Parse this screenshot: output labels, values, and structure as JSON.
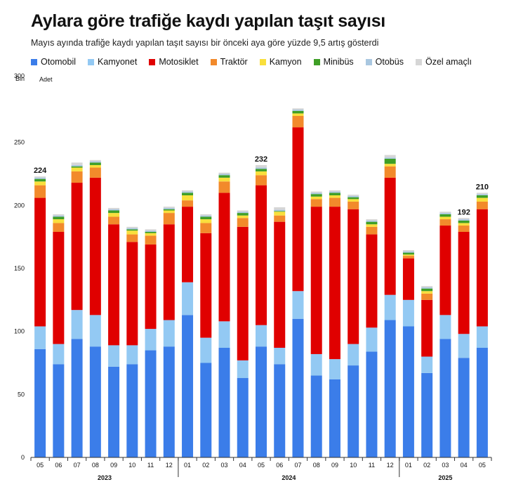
{
  "title": "Aylara göre trafiğe kaydı yapılan taşıt sayısı",
  "subtitle": "Mayıs ayında trafiğe kaydı yapılan taşıt sayısı bir önceki aya göre yüzde 9,5 artış gösterdi",
  "colors": {
    "Otomobil": "#3b7de9",
    "Kamyonet": "#93c9f3",
    "Motosiklet": "#e00000",
    "Traktör": "#f28a2b",
    "Kamyon": "#f9df3c",
    "Minibüs": "#3f9f26",
    "Otobüs": "#a9c7e0",
    "Özel amaçlı": "#d6d6d6"
  },
  "chart_data": {
    "type": "bar",
    "stacked": true,
    "ylabel": "Adet",
    "yunit": "Bin",
    "ylim": [
      0,
      300
    ],
    "yticks": [
      0,
      50,
      100,
      150,
      200,
      250,
      300
    ],
    "grid": false,
    "legend_position": "top",
    "categories": [
      "05",
      "06",
      "07",
      "08",
      "09",
      "10",
      "11",
      "12",
      "01",
      "02",
      "03",
      "04",
      "05",
      "06",
      "07",
      "08",
      "09",
      "10",
      "11",
      "12",
      "01",
      "02",
      "03",
      "04",
      "05"
    ],
    "years": [
      {
        "label": "2023",
        "start": 0,
        "end": 7
      },
      {
        "label": "2024",
        "start": 8,
        "end": 19
      },
      {
        "label": "2025",
        "start": 20,
        "end": 24
      }
    ],
    "annotations": [
      {
        "index": 0,
        "text": "224"
      },
      {
        "index": 12,
        "text": "232"
      },
      {
        "index": 23,
        "text": "192"
      },
      {
        "index": 24,
        "text": "210"
      }
    ],
    "series": [
      {
        "name": "Otomobil",
        "values": [
          86,
          74,
          94,
          88,
          72,
          74,
          85,
          88,
          113,
          75,
          87,
          63,
          88,
          74,
          110,
          65,
          62,
          73,
          84,
          109,
          104,
          67,
          94,
          79,
          87
        ]
      },
      {
        "name": "Kamyonet",
        "values": [
          18,
          16,
          23,
          25,
          17,
          15,
          17,
          21,
          26,
          20,
          21,
          14,
          17,
          13,
          22,
          17,
          16,
          17,
          19,
          20,
          21,
          13,
          19,
          19,
          17
        ]
      },
      {
        "name": "Motosiklet",
        "values": [
          102,
          89,
          101,
          109,
          96,
          82,
          67,
          76,
          60,
          83,
          102,
          106,
          111,
          100,
          130,
          117,
          121,
          107,
          74,
          93,
          33,
          45,
          71,
          81,
          93
        ]
      },
      {
        "name": "Traktör",
        "values": [
          10,
          7,
          9,
          8,
          6,
          6,
          7,
          9,
          5,
          8,
          9,
          7,
          8,
          5,
          9,
          6,
          7,
          6,
          6,
          9,
          2,
          5,
          5,
          5,
          6
        ]
      },
      {
        "name": "Kamyon",
        "values": [
          3,
          3,
          3,
          2,
          3,
          3,
          2,
          2,
          4,
          3,
          3,
          2,
          3,
          3,
          2,
          2,
          2,
          2,
          2,
          2,
          1,
          2,
          2,
          2,
          3
        ]
      },
      {
        "name": "Minibüs",
        "values": [
          2,
          2,
          1,
          2,
          2,
          1,
          1,
          1,
          2,
          2,
          2,
          2,
          2,
          0.5,
          2,
          2,
          2,
          1.5,
          2,
          4,
          1.5,
          2,
          2,
          2,
          2
        ]
      },
      {
        "name": "Otobüs",
        "values": [
          1,
          1,
          1,
          1,
          1,
          1,
          1,
          1,
          1,
          1,
          1,
          1,
          1,
          1,
          1,
          1,
          1,
          1,
          1,
          1,
          1,
          1,
          1,
          1,
          1
        ]
      },
      {
        "name": "Özel amaçlı",
        "values": [
          1,
          1,
          2,
          1,
          1,
          1,
          1,
          1,
          1,
          1,
          1,
          1,
          2,
          2,
          1,
          1,
          1,
          1,
          1,
          2,
          1,
          1,
          1,
          1,
          1
        ]
      }
    ]
  }
}
